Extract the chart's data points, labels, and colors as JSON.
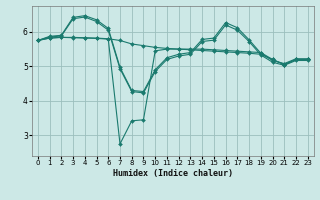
{
  "xlabel": "Humidex (Indice chaleur)",
  "ylabel": "",
  "xlim": [
    -0.5,
    23.5
  ],
  "ylim": [
    2.4,
    6.75
  ],
  "yticks": [
    3,
    4,
    5,
    6
  ],
  "xticks": [
    0,
    1,
    2,
    3,
    4,
    5,
    6,
    7,
    8,
    9,
    10,
    11,
    12,
    13,
    14,
    15,
    16,
    17,
    18,
    19,
    20,
    21,
    22,
    23
  ],
  "bg_color": "#cce8e6",
  "grid_color": "#9bbfbd",
  "line_color": "#1a7a6e",
  "lines": [
    {
      "x": [
        0,
        1,
        2,
        3,
        4,
        5,
        6,
        7,
        8,
        9,
        10,
        11,
        12,
        13,
        14,
        15,
        16,
        17,
        18,
        19,
        20,
        21,
        22,
        23
      ],
      "y": [
        5.75,
        5.87,
        5.9,
        6.42,
        6.47,
        6.35,
        6.1,
        4.97,
        4.3,
        4.27,
        4.9,
        5.25,
        5.35,
        5.4,
        5.78,
        5.82,
        6.27,
        6.12,
        5.77,
        5.38,
        5.17,
        5.08,
        5.22,
        5.22
      ]
    },
    {
      "x": [
        0,
        1,
        2,
        3,
        4,
        5,
        6,
        7,
        8,
        9,
        10,
        11,
        12,
        13,
        14,
        15,
        16,
        17,
        18,
        19,
        20,
        21,
        22,
        23
      ],
      "y": [
        5.75,
        5.85,
        5.88,
        6.38,
        6.43,
        6.3,
        6.05,
        4.93,
        4.27,
        4.23,
        4.85,
        5.2,
        5.3,
        5.35,
        5.72,
        5.76,
        6.2,
        6.05,
        5.72,
        5.33,
        5.12,
        5.03,
        5.17,
        5.17
      ]
    },
    {
      "x": [
        0,
        1,
        2,
        3,
        4,
        5,
        6,
        7,
        8,
        9,
        10,
        11,
        12,
        13,
        14,
        15,
        16,
        17,
        18,
        19,
        20,
        21,
        22,
        23
      ],
      "y": [
        5.75,
        5.82,
        5.84,
        5.84,
        5.83,
        5.82,
        5.8,
        5.75,
        5.65,
        5.6,
        5.55,
        5.52,
        5.5,
        5.48,
        5.46,
        5.44,
        5.42,
        5.4,
        5.38,
        5.35,
        5.2,
        5.05,
        5.2,
        5.2
      ]
    },
    {
      "x": [
        0,
        1,
        2,
        3,
        4,
        5,
        6,
        7,
        8,
        9,
        10,
        11,
        12,
        13,
        14,
        15,
        16,
        17,
        18,
        19,
        20,
        21,
        22,
        23
      ],
      "y": [
        5.75,
        5.82,
        5.84,
        5.83,
        5.82,
        5.81,
        5.79,
        2.75,
        3.42,
        3.45,
        5.45,
        5.5,
        5.5,
        5.5,
        5.5,
        5.48,
        5.46,
        5.44,
        5.42,
        5.4,
        5.2,
        5.05,
        5.2,
        5.2
      ]
    }
  ]
}
